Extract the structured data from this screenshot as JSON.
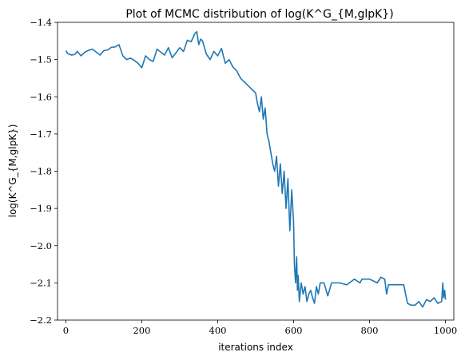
{
  "chart_data": {
    "type": "line",
    "title": "Plot of MCMC distribution of log(K^G_{M,glpK})",
    "xlabel": "iterations index",
    "ylabel": "log(K^G_{M,glpK})",
    "xlim": [
      -22,
      1022
    ],
    "ylim": [
      -2.2,
      -1.4
    ],
    "xticks": [
      0,
      200,
      400,
      600,
      800,
      1000
    ],
    "xtick_labels": [
      "0",
      "200",
      "400",
      "600",
      "800",
      "1000"
    ],
    "yticks": [
      -1.4,
      -1.5,
      -1.6,
      -1.7,
      -1.8,
      -1.9,
      -2.0,
      -2.1,
      -2.2
    ],
    "ytick_labels": [
      "−1.4",
      "−1.5",
      "−1.6",
      "−1.7",
      "−1.8",
      "−1.9",
      "−2.0",
      "−2.1",
      "−2.2"
    ],
    "grid": false,
    "line_color": "#1f77b4",
    "series": [
      {
        "x": [
          0,
          5,
          10,
          15,
          20,
          25,
          30,
          40,
          50,
          60,
          70,
          80,
          90,
          100,
          110,
          120,
          130,
          140,
          150,
          160,
          170,
          180,
          190,
          200,
          210,
          220,
          230,
          240,
          250,
          260,
          270,
          280,
          290,
          300,
          310,
          320,
          330,
          340,
          345,
          350,
          355,
          360,
          370,
          380,
          390,
          400,
          410,
          420,
          430,
          440,
          450,
          460,
          470,
          480,
          490,
          500,
          505,
          510,
          515,
          520,
          525,
          530,
          535,
          540,
          545,
          550,
          555,
          560,
          565,
          570,
          575,
          580,
          585,
          590,
          595,
          600,
          602,
          605,
          608,
          610,
          612,
          615,
          620,
          625,
          630,
          635,
          640,
          645,
          650,
          655,
          660,
          665,
          670,
          680,
          690,
          700,
          720,
          740,
          760,
          775,
          780,
          800,
          820,
          830,
          840,
          845,
          850,
          860,
          880,
          890,
          900,
          910,
          920,
          930,
          940,
          950,
          960,
          970,
          980,
          990,
          993,
          995,
          998,
          1000
        ],
        "y": [
          -1.476,
          -1.484,
          -1.486,
          -1.488,
          -1.487,
          -1.485,
          -1.478,
          -1.49,
          -1.48,
          -1.475,
          -1.472,
          -1.48,
          -1.488,
          -1.476,
          -1.474,
          -1.467,
          -1.466,
          -1.46,
          -1.49,
          -1.5,
          -1.496,
          -1.502,
          -1.51,
          -1.522,
          -1.49,
          -1.5,
          -1.505,
          -1.472,
          -1.48,
          -1.488,
          -1.468,
          -1.495,
          -1.482,
          -1.468,
          -1.478,
          -1.448,
          -1.452,
          -1.43,
          -1.425,
          -1.46,
          -1.445,
          -1.45,
          -1.485,
          -1.5,
          -1.478,
          -1.49,
          -1.47,
          -1.51,
          -1.5,
          -1.52,
          -1.53,
          -1.55,
          -1.56,
          -1.57,
          -1.58,
          -1.59,
          -1.62,
          -1.64,
          -1.6,
          -1.66,
          -1.63,
          -1.7,
          -1.72,
          -1.75,
          -1.78,
          -1.8,
          -1.76,
          -1.84,
          -1.78,
          -1.86,
          -1.8,
          -1.9,
          -1.82,
          -1.96,
          -1.85,
          -1.94,
          -2.05,
          -2.1,
          -2.03,
          -2.12,
          -2.08,
          -2.15,
          -2.1,
          -2.13,
          -2.11,
          -2.15,
          -2.13,
          -2.12,
          -2.14,
          -2.155,
          -2.11,
          -2.13,
          -2.1,
          -2.1,
          -2.135,
          -2.1,
          -2.1,
          -2.105,
          -2.09,
          -2.1,
          -2.09,
          -2.09,
          -2.1,
          -2.085,
          -2.09,
          -2.13,
          -2.105,
          -2.105,
          -2.105,
          -2.105,
          -2.155,
          -2.16,
          -2.16,
          -2.15,
          -2.165,
          -2.145,
          -2.15,
          -2.14,
          -2.155,
          -2.15,
          -2.1,
          -2.14,
          -2.12,
          -2.145
        ]
      }
    ]
  }
}
